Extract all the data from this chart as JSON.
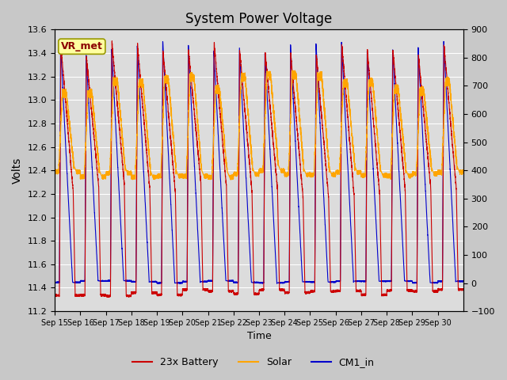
{
  "title": "System Power Voltage",
  "xlabel": "Time",
  "ylabel": "Volts",
  "ylim_left": [
    11.2,
    13.6
  ],
  "ylim_right": [
    -100,
    900
  ],
  "yticks_left": [
    11.2,
    11.4,
    11.6,
    11.8,
    12.0,
    12.2,
    12.4,
    12.6,
    12.8,
    13.0,
    13.2,
    13.4,
    13.6
  ],
  "yticks_right": [
    -100,
    0,
    100,
    200,
    300,
    400,
    500,
    600,
    700,
    800,
    900
  ],
  "xtick_labels": [
    "Sep 15",
    "Sep 16",
    "Sep 17",
    "Sep 18",
    "Sep 19",
    "Sep 20",
    "Sep 21",
    "Sep 22",
    "Sep 23",
    "Sep 24",
    "Sep 25",
    "Sep 26",
    "Sep 27",
    "Sep 28",
    "Sep 29",
    "Sep 30"
  ],
  "annotation_text": "VR_met",
  "annotation_color": "#8B0000",
  "annotation_bg": "#FFFFA0",
  "annotation_edge": "#999900",
  "legend_labels": [
    "23x Battery",
    "Solar",
    "CM1_in"
  ],
  "color_battery": "#CC0000",
  "color_solar": "#FFA500",
  "color_cm1": "#0000CC",
  "fig_facecolor": "#C8C8C8",
  "plot_facecolor": "#DCDCDC",
  "grid_color": "#FFFFFF",
  "n_days": 16,
  "pts_per_day": 300
}
